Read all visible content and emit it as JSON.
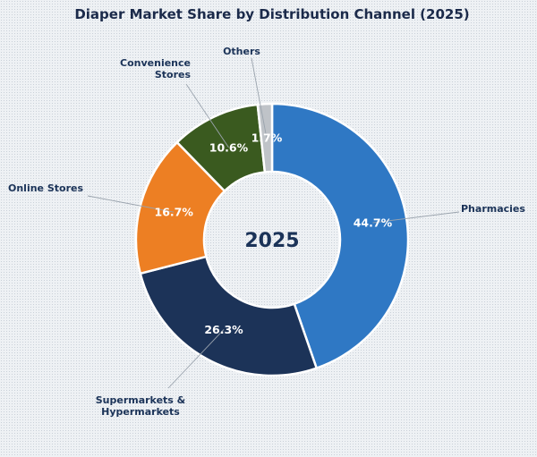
{
  "chart_data": {
    "type": "pie",
    "title": "Diaper Market Share by Distribution Channel (2025)",
    "center_label": "2025",
    "start": "top, clockwise",
    "series": [
      {
        "name": "Pharmacies",
        "label_lines": [
          "Pharmacies"
        ],
        "value": 44.7,
        "label": "44.7%",
        "color": "#2f78c4"
      },
      {
        "name": "Supermarkets & Hypermarkets",
        "label_lines": [
          "Supermarkets &",
          "Hypermarkets"
        ],
        "value": 26.3,
        "label": "26.3%",
        "color": "#1c3358"
      },
      {
        "name": "Online Stores",
        "label_lines": [
          "Online Stores"
        ],
        "value": 16.7,
        "label": "16.7%",
        "color": "#ed7f23"
      },
      {
        "name": "Convenience Stores",
        "label_lines": [
          "Convenience",
          "Stores"
        ],
        "value": 10.6,
        "label": "10.6%",
        "color": "#3a5a1f"
      },
      {
        "name": "Others",
        "label_lines": [
          "Others"
        ],
        "value": 1.7,
        "label": "1.7%",
        "color": "#bfc3c8"
      }
    ]
  }
}
